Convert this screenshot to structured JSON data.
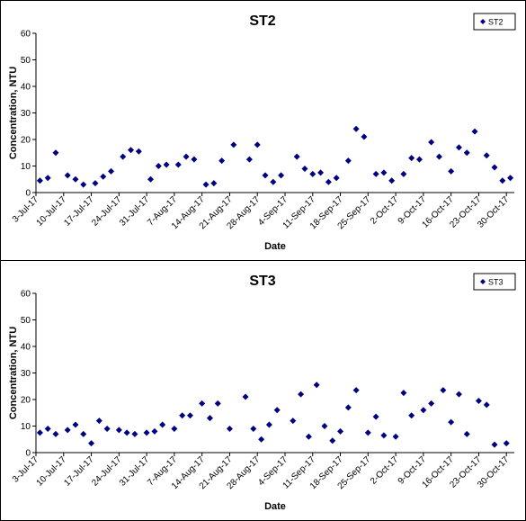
{
  "chart_data": [
    {
      "type": "scatter",
      "title": "ST2",
      "x_label": "Date",
      "y_label": "Concentration, NTU",
      "x": [
        "2017-07-04",
        "2017-07-06",
        "2017-07-08",
        "2017-07-11",
        "2017-07-13",
        "2017-07-15",
        "2017-07-18",
        "2017-07-20",
        "2017-07-22",
        "2017-07-25",
        "2017-07-27",
        "2017-07-29",
        "2017-08-01",
        "2017-08-03",
        "2017-08-05",
        "2017-08-08",
        "2017-08-10",
        "2017-08-12",
        "2017-08-15",
        "2017-08-17",
        "2017-08-19",
        "2017-08-22",
        "2017-08-26",
        "2017-08-28",
        "2017-08-30",
        "2017-09-01",
        "2017-09-03",
        "2017-09-07",
        "2017-09-09",
        "2017-09-11",
        "2017-09-13",
        "2017-09-15",
        "2017-09-17",
        "2017-09-20",
        "2017-09-22",
        "2017-09-24",
        "2017-09-27",
        "2017-09-29",
        "2017-10-01",
        "2017-10-04",
        "2017-10-06",
        "2017-10-08",
        "2017-10-11",
        "2017-10-13",
        "2017-10-16",
        "2017-10-18",
        "2017-10-20",
        "2017-10-22",
        "2017-10-25",
        "2017-10-27",
        "2017-10-29",
        "2017-10-31"
      ],
      "series": [
        {
          "name": "ST2",
          "color": "#000080",
          "values": [
            4.5,
            5.5,
            15,
            6.5,
            5,
            3,
            3.5,
            6,
            8,
            13.5,
            16,
            15.5,
            5,
            10,
            10.5,
            10.5,
            13.5,
            12.5,
            3,
            3.5,
            12,
            18,
            12.5,
            18,
            6.5,
            4,
            6.5,
            13.5,
            9,
            7,
            7.5,
            4,
            5.5,
            12,
            24,
            21,
            7,
            7.5,
            4.5,
            7,
            13,
            12.5,
            19,
            13.5,
            8,
            17,
            15,
            23,
            14,
            9.5,
            4.5,
            5.5
          ]
        }
      ],
      "xlim": [
        "2017-07-03",
        "2017-11-01"
      ],
      "xticks": [
        {
          "value": "2017-07-03",
          "label": "3-Jul-17"
        },
        {
          "value": "2017-07-10",
          "label": "10-Jul-17"
        },
        {
          "value": "2017-07-17",
          "label": "17-Jul-17"
        },
        {
          "value": "2017-07-24",
          "label": "24-Jul-17"
        },
        {
          "value": "2017-07-31",
          "label": "31-Jul-17"
        },
        {
          "value": "2017-08-07",
          "label": "7-Aug-17"
        },
        {
          "value": "2017-08-14",
          "label": "14-Aug-17"
        },
        {
          "value": "2017-08-21",
          "label": "21-Aug-17"
        },
        {
          "value": "2017-08-28",
          "label": "28-Aug-17"
        },
        {
          "value": "2017-09-04",
          "label": "4-Sep-17"
        },
        {
          "value": "2017-09-11",
          "label": "11-Sep-17"
        },
        {
          "value": "2017-09-18",
          "label": "18-Sep-17"
        },
        {
          "value": "2017-09-25",
          "label": "25-Sep-17"
        },
        {
          "value": "2017-10-02",
          "label": "2-Oct-17"
        },
        {
          "value": "2017-10-09",
          "label": "9-Oct-17"
        },
        {
          "value": "2017-10-16",
          "label": "16-Oct-17"
        },
        {
          "value": "2017-10-23",
          "label": "23-Oct-17"
        },
        {
          "value": "2017-10-30",
          "label": "30-Oct-17"
        }
      ],
      "ylim": [
        0,
        60
      ],
      "yticks": [
        0,
        10,
        20,
        30,
        40,
        50,
        60
      ],
      "grid": false,
      "legend": "top-right"
    },
    {
      "type": "scatter",
      "title": "ST3",
      "x_label": "Date",
      "y_label": "Concentration, NTU",
      "x": [
        "2017-07-04",
        "2017-07-06",
        "2017-07-08",
        "2017-07-11",
        "2017-07-13",
        "2017-07-15",
        "2017-07-17",
        "2017-07-19",
        "2017-07-21",
        "2017-07-24",
        "2017-07-26",
        "2017-07-28",
        "2017-07-31",
        "2017-08-02",
        "2017-08-04",
        "2017-08-07",
        "2017-08-09",
        "2017-08-11",
        "2017-08-14",
        "2017-08-16",
        "2017-08-18",
        "2017-08-21",
        "2017-08-25",
        "2017-08-27",
        "2017-08-29",
        "2017-08-31",
        "2017-09-02",
        "2017-09-06",
        "2017-09-08",
        "2017-09-10",
        "2017-09-12",
        "2017-09-14",
        "2017-09-16",
        "2017-09-18",
        "2017-09-20",
        "2017-09-22",
        "2017-09-25",
        "2017-09-27",
        "2017-09-29",
        "2017-10-02",
        "2017-10-04",
        "2017-10-06",
        "2017-10-09",
        "2017-10-11",
        "2017-10-14",
        "2017-10-16",
        "2017-10-18",
        "2017-10-20",
        "2017-10-23",
        "2017-10-25",
        "2017-10-27",
        "2017-10-30"
      ],
      "series": [
        {
          "name": "ST3",
          "color": "#000080",
          "values": [
            7.5,
            9,
            7,
            8.5,
            10.5,
            7,
            3.5,
            12,
            9,
            8.5,
            7.5,
            7,
            7.5,
            8,
            10.5,
            9,
            14,
            14,
            18.5,
            13,
            18.5,
            9,
            21,
            9,
            5,
            10.5,
            16,
            12,
            22,
            6,
            25.5,
            10,
            4.5,
            8,
            17,
            23.5,
            7.5,
            13.5,
            6.5,
            6,
            22.5,
            14,
            16,
            18.5,
            23.5,
            11.5,
            22,
            7,
            19.5,
            18,
            3,
            3.5
          ]
        }
      ],
      "xlim": [
        "2017-07-03",
        "2017-11-01"
      ],
      "xticks": [
        {
          "value": "2017-07-03",
          "label": "3-Jul-17"
        },
        {
          "value": "2017-07-10",
          "label": "10-Jul-17"
        },
        {
          "value": "2017-07-17",
          "label": "17-Jul-17"
        },
        {
          "value": "2017-07-24",
          "label": "24-Jul-17"
        },
        {
          "value": "2017-07-31",
          "label": "31-Jul-17"
        },
        {
          "value": "2017-08-07",
          "label": "7-Aug-17"
        },
        {
          "value": "2017-08-14",
          "label": "14-Aug-17"
        },
        {
          "value": "2017-08-21",
          "label": "21-Aug-17"
        },
        {
          "value": "2017-08-28",
          "label": "28-Aug-17"
        },
        {
          "value": "2017-09-04",
          "label": "4-Sep-17"
        },
        {
          "value": "2017-09-11",
          "label": "11-Sep-17"
        },
        {
          "value": "2017-09-18",
          "label": "18-Sep-17"
        },
        {
          "value": "2017-09-25",
          "label": "25-Sep-17"
        },
        {
          "value": "2017-10-02",
          "label": "2-Oct-17"
        },
        {
          "value": "2017-10-09",
          "label": "9-Oct-17"
        },
        {
          "value": "2017-10-16",
          "label": "16-Oct-17"
        },
        {
          "value": "2017-10-23",
          "label": "23-Oct-17"
        },
        {
          "value": "2017-10-30",
          "label": "30-Oct-17"
        }
      ],
      "ylim": [
        0,
        60
      ],
      "yticks": [
        0,
        10,
        20,
        30,
        40,
        50,
        60
      ],
      "grid": false,
      "legend": "top-right"
    }
  ]
}
